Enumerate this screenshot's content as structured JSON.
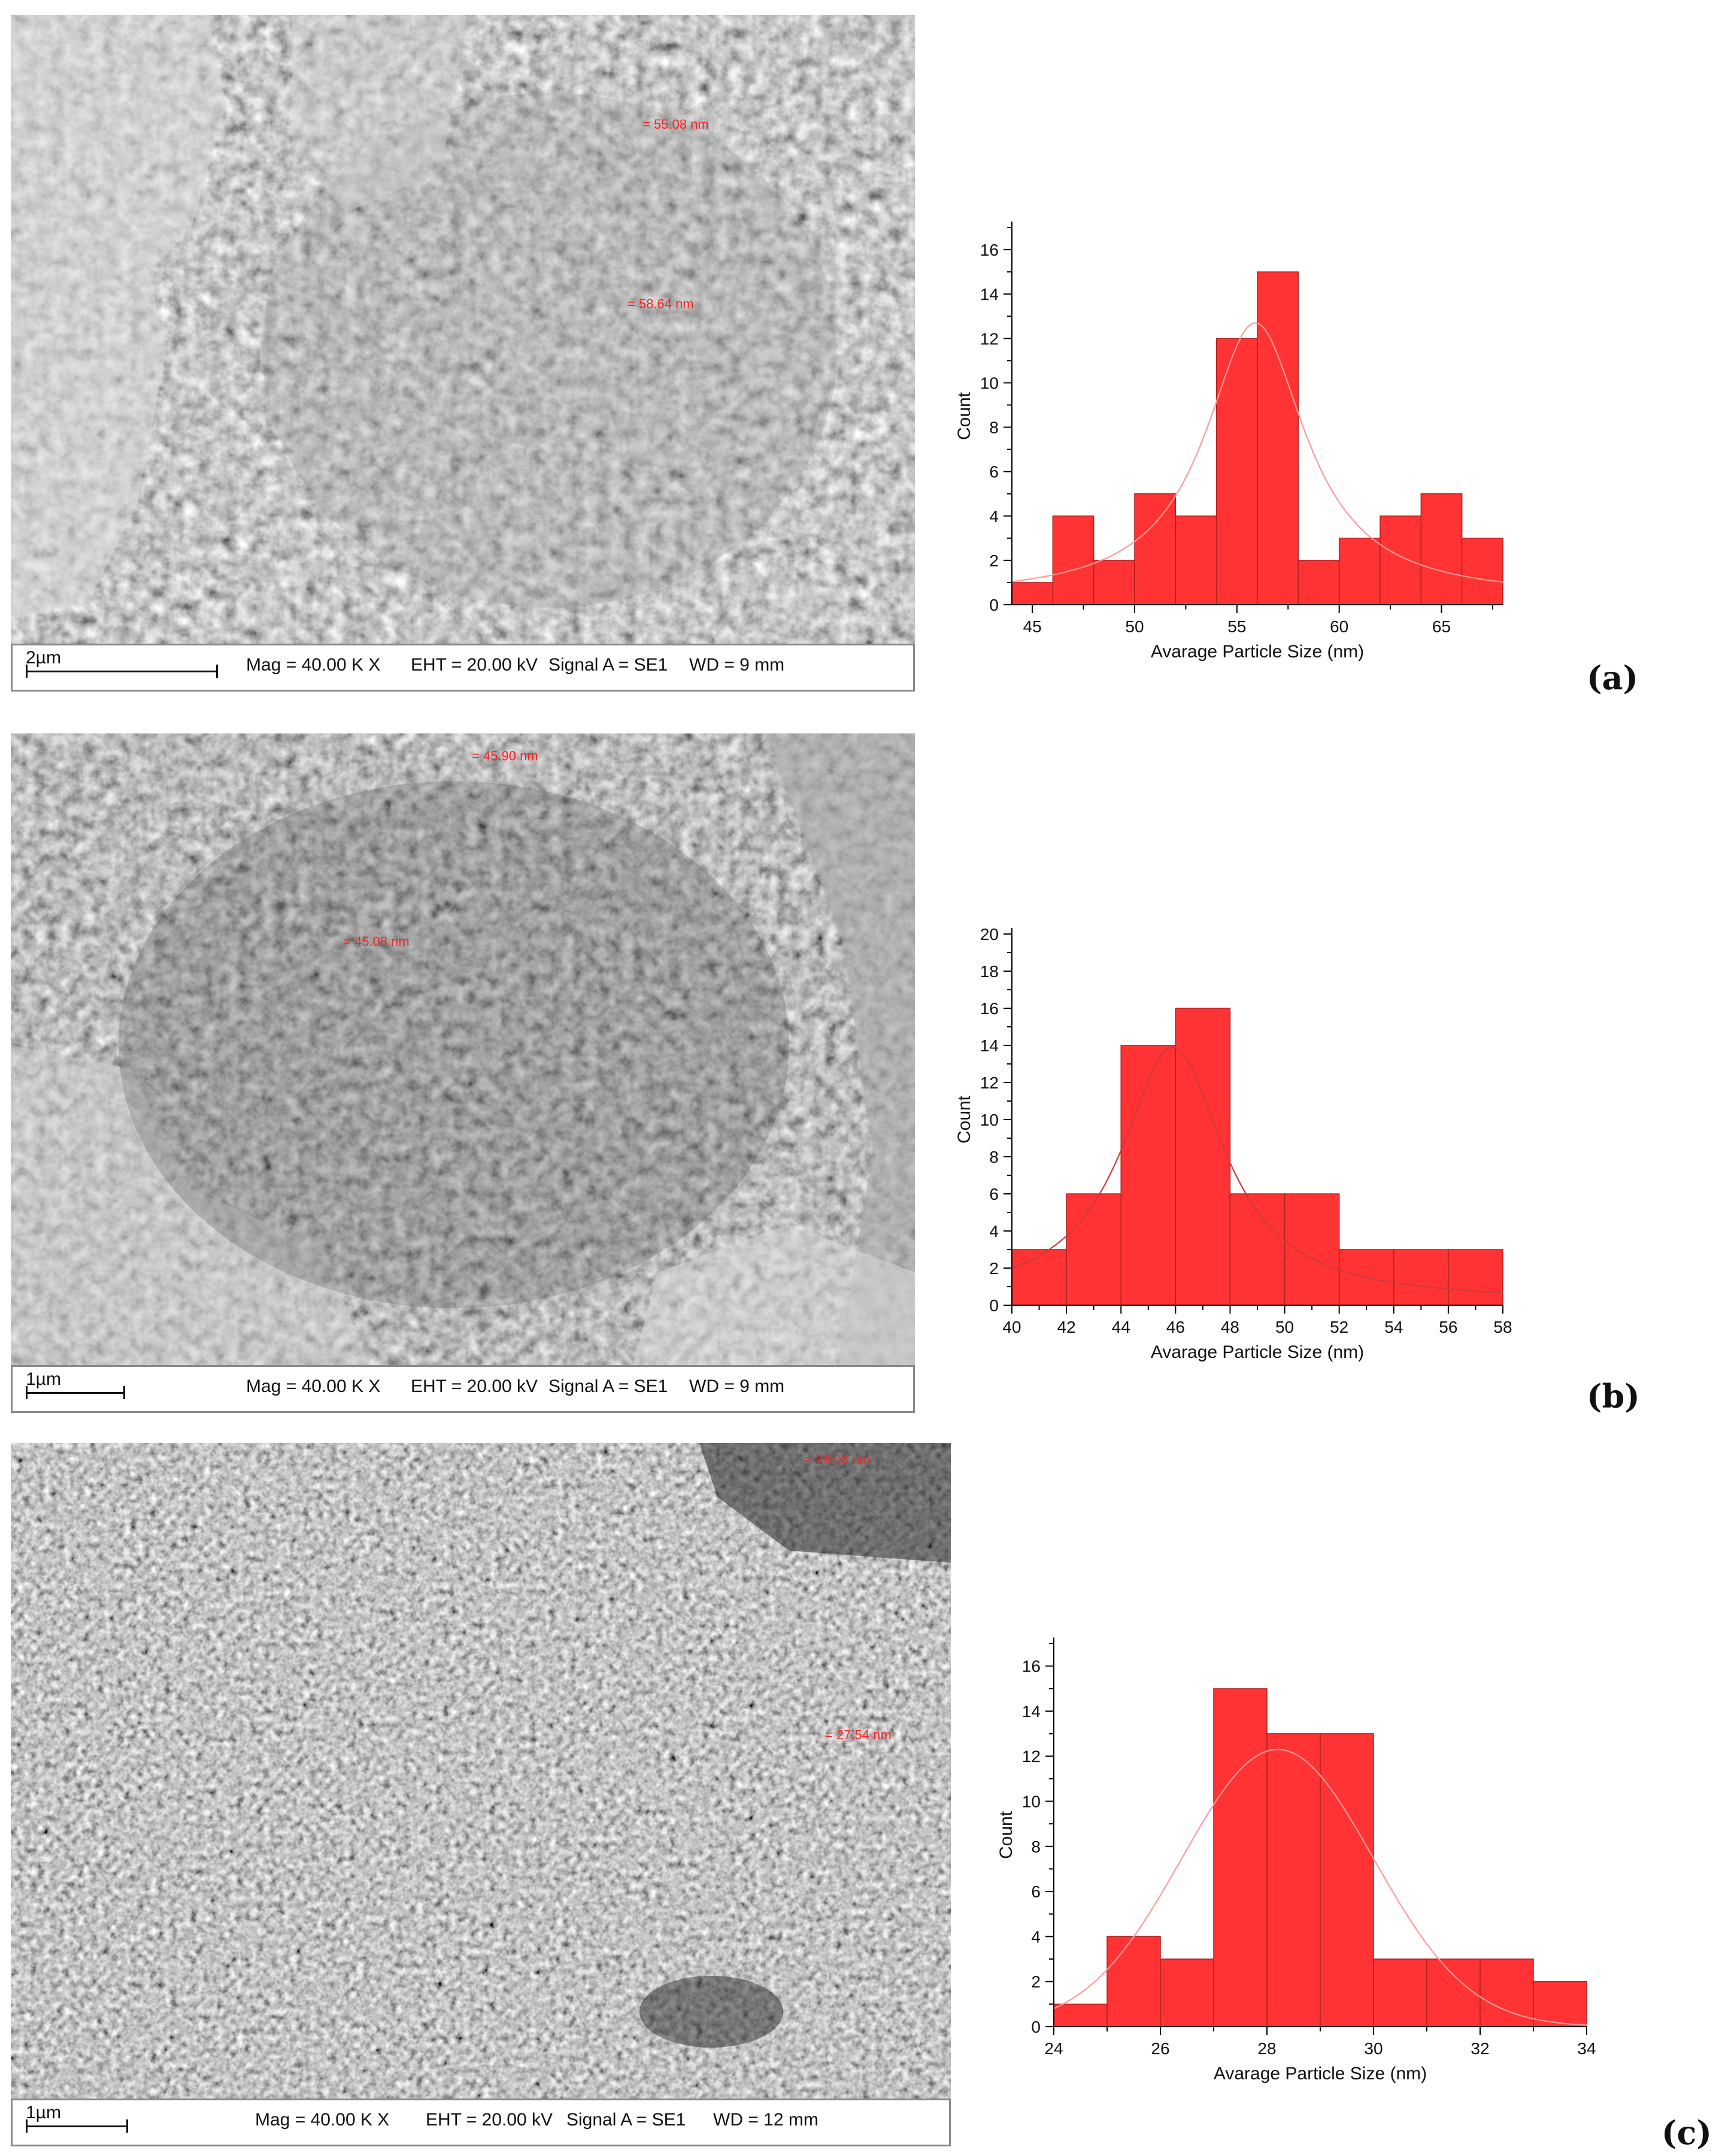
{
  "panels": [
    {
      "id": "a",
      "label": "(a)",
      "sem": {
        "scale": "2µm",
        "mag": "Mag =  40.00 K X",
        "eht": "EHT = 20.00 kV",
        "signal": "Signal A = SE1",
        "wd": "WD =    9 mm",
        "measurements": [
          "= 55.08 nm",
          "= 58.64 nm"
        ]
      },
      "chart_data": {
        "type": "bar",
        "xlabel": "Avarage Particle Size (nm)",
        "ylabel": "Count",
        "xlim": [
          44,
          68
        ],
        "ylim": [
          0,
          17
        ],
        "xticks": [
          45,
          50,
          55,
          60,
          65
        ],
        "yticks": [
          0,
          2,
          4,
          6,
          8,
          10,
          12,
          14,
          16
        ],
        "bin_edges": [
          44,
          46,
          48,
          50,
          52,
          54,
          56,
          58,
          60,
          62,
          64,
          66,
          68
        ],
        "values": [
          1,
          4,
          2,
          5,
          4,
          12,
          15,
          2,
          3,
          4,
          5,
          3
        ],
        "fit": {
          "type": "lorentzian",
          "center": 55.9,
          "peak": 12.7,
          "fwhm": 6.0,
          "baseline": 0.3
        }
      }
    },
    {
      "id": "b",
      "label": "(b)",
      "sem": {
        "scale": "1µm",
        "mag": "Mag =  40.00 K X",
        "eht": "EHT = 20.00 kV",
        "signal": "Signal A = SE1",
        "wd": "WD =    9 mm",
        "measurements": [
          "= 45.90 nm",
          "= 45.08 nm"
        ]
      },
      "chart_data": {
        "type": "bar",
        "xlabel": "Avarage Particle Size (nm)",
        "ylabel": "Count",
        "xlim": [
          40,
          58
        ],
        "ylim": [
          0,
          20
        ],
        "xticks": [
          40,
          42,
          44,
          46,
          48,
          50,
          52,
          54,
          56,
          58
        ],
        "yticks": [
          0,
          2,
          4,
          6,
          8,
          10,
          12,
          14,
          16,
          18,
          20
        ],
        "bin_edges": [
          40,
          42,
          44,
          46,
          48,
          50,
          52,
          54,
          56,
          58
        ],
        "values": [
          3,
          6,
          14,
          16,
          6,
          6,
          3,
          3,
          3
        ],
        "fit": {
          "type": "lorentzian",
          "center": 45.9,
          "peak": 13.9,
          "fwhm": 4.6,
          "baseline": 0.2
        }
      }
    },
    {
      "id": "c",
      "label": "(c)",
      "sem": {
        "scale": "1µm",
        "mag": "Mag =  40.00 K X",
        "eht": "EHT = 20.00 kV",
        "signal": "Signal A = SE1",
        "wd": "WD =  12 mm",
        "measurements": [
          "= 29.03 nm",
          "= 27.54 nm"
        ]
      },
      "chart_data": {
        "type": "bar",
        "xlabel": "Avarage Particle Size (nm)",
        "ylabel": "Count",
        "xlim": [
          24,
          34
        ],
        "ylim": [
          0,
          17
        ],
        "xticks": [
          24,
          26,
          28,
          30,
          32,
          34
        ],
        "yticks": [
          0,
          2,
          4,
          6,
          8,
          10,
          12,
          14,
          16
        ],
        "bin_edges": [
          24,
          25,
          26,
          27,
          28,
          29,
          30,
          31,
          32,
          33,
          34
        ],
        "values": [
          1,
          4,
          3,
          15,
          13,
          13,
          3,
          3,
          3,
          2
        ],
        "fit": {
          "type": "gaussian",
          "center": 28.2,
          "peak": 12.3,
          "sigma": 1.8
        }
      }
    }
  ],
  "colors": {
    "bar": "#ff3333",
    "bar_edge": "#b02020",
    "fit_line": "#ff9a9a",
    "fit_line_b": "#cc3a3a",
    "axis": "#000000"
  }
}
